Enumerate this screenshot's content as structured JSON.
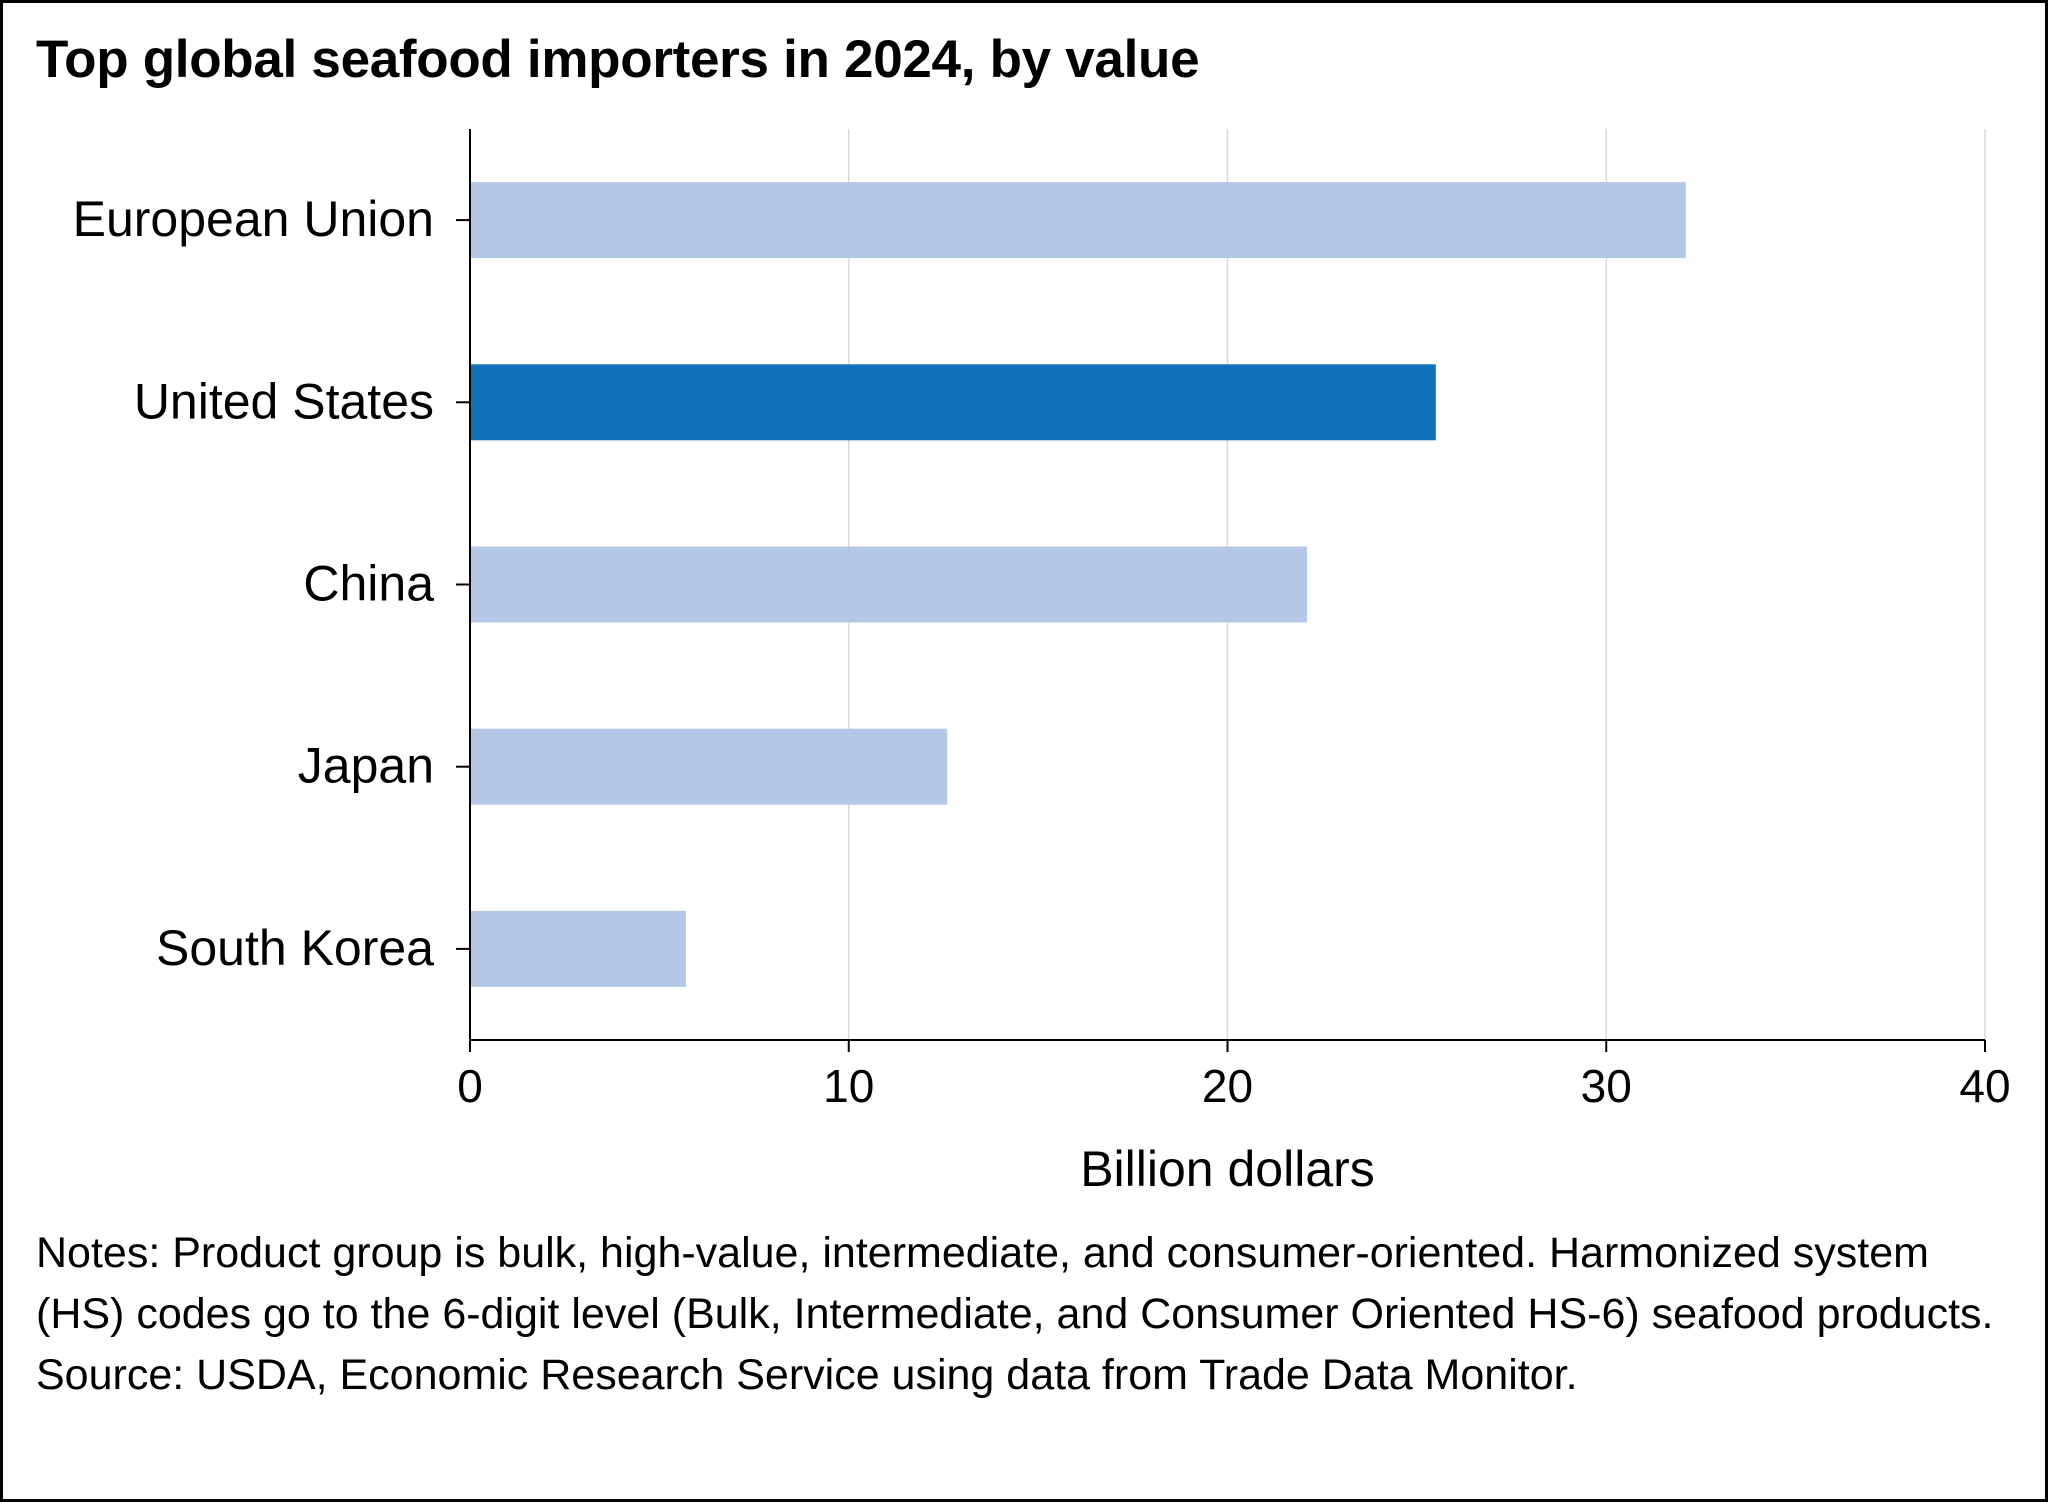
{
  "title": "Top global seafood importers in 2024, by value",
  "notes": "Notes: Product group is bulk, high-value, intermediate, and consumer-oriented. Harmonized system (HS) codes go to the 6-digit level (Bulk, Intermediate, and Consumer Oriented HS-6) seafood products.",
  "source": "Source: USDA, Economic Research Service using data from Trade Data Monitor.",
  "colors": {
    "highlight": "#1272b9",
    "default": "#b4c7e6",
    "gridline": "#d9d9d9",
    "axis": "#000000"
  },
  "chart_data": {
    "type": "bar",
    "orientation": "horizontal",
    "categories": [
      "European Union",
      "United States",
      "China",
      "Japan",
      "South Korea"
    ],
    "values": [
      32.1,
      25.5,
      22.1,
      12.6,
      5.7
    ],
    "highlight": "United States",
    "xlabel": "Billion dollars",
    "xlim": [
      0,
      40
    ],
    "xticks": [
      0,
      10,
      20,
      30,
      40
    ],
    "grid": true,
    "legend": "none"
  }
}
